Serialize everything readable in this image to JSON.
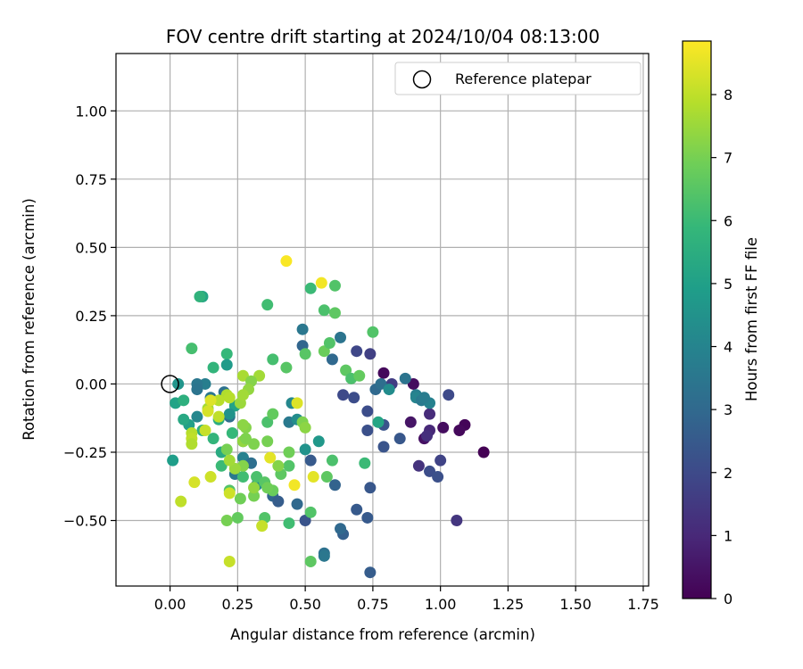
{
  "chart_data": {
    "type": "scatter",
    "title": "FOV centre drift starting at 2024/10/04 08:13:00",
    "xlabel": "Angular distance from reference (arcmin)",
    "ylabel": "Rotation from reference (arcmin)",
    "xlim": [
      -0.2,
      1.77
    ],
    "ylim": [
      -0.74,
      1.21
    ],
    "xticks": [
      "0.00",
      "0.25",
      "0.50",
      "0.75",
      "1.00",
      "1.25",
      "1.50",
      "1.75"
    ],
    "xtick_values": [
      0,
      0.25,
      0.5,
      0.75,
      1.0,
      1.25,
      1.5,
      1.75
    ],
    "yticks": [
      "−0.50",
      "−0.25",
      "0.00",
      "0.25",
      "0.50",
      "0.75",
      "1.00"
    ],
    "ytick_values": [
      -0.5,
      -0.25,
      0,
      0.25,
      0.5,
      0.75,
      1.0
    ],
    "grid": true,
    "legend": {
      "placement": "top-right",
      "entries": [
        "Reference platepar"
      ]
    },
    "reference_point": {
      "x": 0.0,
      "y": 0.0
    },
    "colorbar": {
      "label": "Hours from first FF file",
      "colormap": "viridis",
      "range": [
        0,
        8.85
      ],
      "ticks": [
        "0",
        "1",
        "2",
        "3",
        "4",
        "5",
        "6",
        "7",
        "8"
      ],
      "tick_values": [
        0,
        1,
        2,
        3,
        4,
        5,
        6,
        7,
        8
      ]
    },
    "points": [
      {
        "x": 1.16,
        "y": -0.25,
        "c": 0.0
      },
      {
        "x": 1.09,
        "y": -0.15,
        "c": 0.1
      },
      {
        "x": 1.07,
        "y": -0.17,
        "c": 0.2
      },
      {
        "x": 1.01,
        "y": -0.16,
        "c": 0.3
      },
      {
        "x": 0.94,
        "y": -0.2,
        "c": 0.4
      },
      {
        "x": 0.89,
        "y": -0.14,
        "c": 0.5
      },
      {
        "x": 0.9,
        "y": 0.0,
        "c": 0.3
      },
      {
        "x": 0.79,
        "y": 0.04,
        "c": 0.2
      },
      {
        "x": 0.96,
        "y": -0.17,
        "c": 1.0
      },
      {
        "x": 0.95,
        "y": -0.19,
        "c": 1.2
      },
      {
        "x": 0.96,
        "y": -0.11,
        "c": 1.1
      },
      {
        "x": 0.92,
        "y": -0.3,
        "c": 1.3
      },
      {
        "x": 1.06,
        "y": -0.5,
        "c": 1.4
      },
      {
        "x": 1.0,
        "y": -0.28,
        "c": 1.8
      },
      {
        "x": 0.96,
        "y": -0.32,
        "c": 2.1
      },
      {
        "x": 0.99,
        "y": -0.34,
        "c": 2.2
      },
      {
        "x": 1.03,
        "y": -0.04,
        "c": 2.0
      },
      {
        "x": 0.82,
        "y": 0.0,
        "c": 1.6
      },
      {
        "x": 0.74,
        "y": 0.11,
        "c": 1.7
      },
      {
        "x": 0.69,
        "y": 0.12,
        "c": 1.9
      },
      {
        "x": 0.64,
        "y": -0.04,
        "c": 2.0
      },
      {
        "x": 0.68,
        "y": -0.05,
        "c": 2.1
      },
      {
        "x": 0.73,
        "y": -0.1,
        "c": 2.1
      },
      {
        "x": 0.73,
        "y": -0.17,
        "c": 2.2
      },
      {
        "x": 0.79,
        "y": -0.15,
        "c": 2.3
      },
      {
        "x": 0.79,
        "y": -0.23,
        "c": 2.3
      },
      {
        "x": 0.85,
        "y": -0.2,
        "c": 2.4
      },
      {
        "x": 0.74,
        "y": -0.38,
        "c": 2.4
      },
      {
        "x": 0.69,
        "y": -0.46,
        "c": 2.5
      },
      {
        "x": 0.73,
        "y": -0.49,
        "c": 2.5
      },
      {
        "x": 0.74,
        "y": -0.69,
        "c": 2.6
      },
      {
        "x": 0.64,
        "y": -0.55,
        "c": 2.7
      },
      {
        "x": 0.63,
        "y": -0.53,
        "c": 3.0
      },
      {
        "x": 0.57,
        "y": -0.62,
        "c": 3.3
      },
      {
        "x": 0.57,
        "y": -0.63,
        "c": 3.5
      },
      {
        "x": 0.5,
        "y": -0.5,
        "c": 2.3
      },
      {
        "x": 0.47,
        "y": -0.44,
        "c": 3.0
      },
      {
        "x": 0.38,
        "y": -0.41,
        "c": 2.9
      },
      {
        "x": 0.4,
        "y": -0.43,
        "c": 2.6
      },
      {
        "x": 0.52,
        "y": -0.28,
        "c": 2.5
      },
      {
        "x": 0.61,
        "y": -0.37,
        "c": 2.8
      },
      {
        "x": 0.6,
        "y": 0.09,
        "c": 3.0
      },
      {
        "x": 0.63,
        "y": 0.17,
        "c": 3.4
      },
      {
        "x": 0.49,
        "y": 0.14,
        "c": 2.9
      },
      {
        "x": 0.49,
        "y": 0.2,
        "c": 3.5
      },
      {
        "x": 0.76,
        "y": -0.02,
        "c": 3.0
      },
      {
        "x": 0.78,
        "y": 0.0,
        "c": 3.2
      },
      {
        "x": 0.87,
        "y": 0.02,
        "c": 3.4
      },
      {
        "x": 0.91,
        "y": -0.04,
        "c": 3.8
      },
      {
        "x": 0.91,
        "y": -0.05,
        "c": 4.0
      },
      {
        "x": 0.93,
        "y": -0.06,
        "c": 3.6
      },
      {
        "x": 0.96,
        "y": -0.07,
        "c": 3.9
      },
      {
        "x": 0.94,
        "y": -0.05,
        "c": 3.7
      },
      {
        "x": 0.81,
        "y": -0.02,
        "c": 4.3
      },
      {
        "x": 0.77,
        "y": -0.14,
        "c": 5.2
      },
      {
        "x": 0.44,
        "y": -0.14,
        "c": 3.6
      },
      {
        "x": 0.45,
        "y": -0.07,
        "c": 4.1
      },
      {
        "x": 0.47,
        "y": -0.13,
        "c": 4.3
      },
      {
        "x": 0.55,
        "y": -0.21,
        "c": 4.7
      },
      {
        "x": 0.5,
        "y": -0.24,
        "c": 4.5
      },
      {
        "x": 0.32,
        "y": -0.37,
        "c": 4.2
      },
      {
        "x": 0.27,
        "y": -0.27,
        "c": 3.9
      },
      {
        "x": 0.24,
        "y": -0.33,
        "c": 3.6
      },
      {
        "x": 0.3,
        "y": -0.29,
        "c": 3.2
      },
      {
        "x": 0.22,
        "y": -0.12,
        "c": 3.2
      },
      {
        "x": 0.2,
        "y": -0.03,
        "c": 3.3
      },
      {
        "x": 0.15,
        "y": -0.05,
        "c": 3.5
      },
      {
        "x": 0.13,
        "y": 0.0,
        "c": 3.8
      },
      {
        "x": 0.1,
        "y": 0.0,
        "c": 3.5
      },
      {
        "x": 0.1,
        "y": -0.02,
        "c": 3.4
      },
      {
        "x": 0.1,
        "y": -0.12,
        "c": 4.1
      },
      {
        "x": 0.07,
        "y": -0.15,
        "c": 5.0
      },
      {
        "x": 0.03,
        "y": 0.0,
        "c": 4.6
      },
      {
        "x": 0.02,
        "y": -0.07,
        "c": 5.1
      },
      {
        "x": 0.01,
        "y": -0.28,
        "c": 4.9
      },
      {
        "x": 0.12,
        "y": 0.32,
        "c": 5.2
      },
      {
        "x": 0.11,
        "y": 0.32,
        "c": 5.7
      },
      {
        "x": 0.08,
        "y": 0.13,
        "c": 6.2
      },
      {
        "x": 0.05,
        "y": -0.06,
        "c": 5.6
      },
      {
        "x": 0.05,
        "y": -0.13,
        "c": 5.3
      },
      {
        "x": 0.12,
        "y": -0.17,
        "c": 5.5
      },
      {
        "x": 0.16,
        "y": -0.2,
        "c": 5.8
      },
      {
        "x": 0.18,
        "y": -0.13,
        "c": 5.5
      },
      {
        "x": 0.16,
        "y": 0.06,
        "c": 5.8
      },
      {
        "x": 0.21,
        "y": 0.11,
        "c": 5.9
      },
      {
        "x": 0.21,
        "y": 0.07,
        "c": 4.8
      },
      {
        "x": 0.24,
        "y": -0.08,
        "c": 5.1
      },
      {
        "x": 0.22,
        "y": -0.11,
        "c": 4.5
      },
      {
        "x": 0.27,
        "y": -0.21,
        "c": 5.2
      },
      {
        "x": 0.23,
        "y": -0.18,
        "c": 5.9
      },
      {
        "x": 0.19,
        "y": -0.25,
        "c": 5.4
      },
      {
        "x": 0.19,
        "y": -0.3,
        "c": 6.0
      },
      {
        "x": 0.27,
        "y": -0.34,
        "c": 6.1
      },
      {
        "x": 0.22,
        "y": -0.39,
        "c": 6.4
      },
      {
        "x": 0.32,
        "y": -0.34,
        "c": 6.3
      },
      {
        "x": 0.35,
        "y": -0.36,
        "c": 6.5
      },
      {
        "x": 0.38,
        "y": -0.39,
        "c": 6.8
      },
      {
        "x": 0.41,
        "y": -0.33,
        "c": 6.6
      },
      {
        "x": 0.44,
        "y": -0.3,
        "c": 6.4
      },
      {
        "x": 0.44,
        "y": -0.25,
        "c": 6.9
      },
      {
        "x": 0.36,
        "y": -0.21,
        "c": 7.0
      },
      {
        "x": 0.31,
        "y": -0.22,
        "c": 7.1
      },
      {
        "x": 0.28,
        "y": -0.16,
        "c": 7.2
      },
      {
        "x": 0.33,
        "y": 0.03,
        "c": 7.6
      },
      {
        "x": 0.27,
        "y": 0.03,
        "c": 7.7
      },
      {
        "x": 0.21,
        "y": -0.04,
        "c": 7.8
      },
      {
        "x": 0.18,
        "y": -0.06,
        "c": 7.9
      },
      {
        "x": 0.36,
        "y": -0.14,
        "c": 6.3
      },
      {
        "x": 0.38,
        "y": -0.11,
        "c": 6.7
      },
      {
        "x": 0.43,
        "y": 0.06,
        "c": 6.5
      },
      {
        "x": 0.38,
        "y": 0.09,
        "c": 6.2
      },
      {
        "x": 0.36,
        "y": 0.29,
        "c": 6.1
      },
      {
        "x": 0.52,
        "y": 0.35,
        "c": 6.0
      },
      {
        "x": 0.57,
        "y": 0.27,
        "c": 6.3
      },
      {
        "x": 0.61,
        "y": 0.26,
        "c": 6.6
      },
      {
        "x": 0.61,
        "y": 0.36,
        "c": 6.4
      },
      {
        "x": 0.5,
        "y": 0.11,
        "c": 6.5
      },
      {
        "x": 0.57,
        "y": 0.12,
        "c": 6.8
      },
      {
        "x": 0.59,
        "y": 0.15,
        "c": 6.4
      },
      {
        "x": 0.65,
        "y": 0.05,
        "c": 6.6
      },
      {
        "x": 0.67,
        "y": 0.02,
        "c": 6.3
      },
      {
        "x": 0.7,
        "y": 0.03,
        "c": 6.7
      },
      {
        "x": 0.75,
        "y": 0.19,
        "c": 6.4
      },
      {
        "x": 0.72,
        "y": -0.29,
        "c": 6.0
      },
      {
        "x": 0.6,
        "y": -0.28,
        "c": 6.3
      },
      {
        "x": 0.58,
        "y": -0.34,
        "c": 6.6
      },
      {
        "x": 0.52,
        "y": -0.47,
        "c": 6.4
      },
      {
        "x": 0.52,
        "y": -0.65,
        "c": 6.6
      },
      {
        "x": 0.44,
        "y": -0.51,
        "c": 6.1
      },
      {
        "x": 0.35,
        "y": -0.49,
        "c": 6.4
      },
      {
        "x": 0.25,
        "y": -0.49,
        "c": 6.7
      },
      {
        "x": 0.21,
        "y": -0.5,
        "c": 7.0
      },
      {
        "x": 0.26,
        "y": -0.42,
        "c": 6.9
      },
      {
        "x": 0.31,
        "y": -0.41,
        "c": 7.0
      },
      {
        "x": 0.31,
        "y": -0.38,
        "c": 7.4
      },
      {
        "x": 0.36,
        "y": -0.38,
        "c": 6.9
      },
      {
        "x": 0.4,
        "y": -0.3,
        "c": 7.2
      },
      {
        "x": 0.49,
        "y": -0.14,
        "c": 7.1
      },
      {
        "x": 0.5,
        "y": -0.16,
        "c": 7.3
      },
      {
        "x": 0.27,
        "y": -0.3,
        "c": 7.2
      },
      {
        "x": 0.24,
        "y": -0.31,
        "c": 7.5
      },
      {
        "x": 0.21,
        "y": -0.24,
        "c": 7.0
      },
      {
        "x": 0.22,
        "y": -0.28,
        "c": 7.6
      },
      {
        "x": 0.27,
        "y": -0.21,
        "c": 7.4
      },
      {
        "x": 0.28,
        "y": -0.2,
        "c": 7.1
      },
      {
        "x": 0.27,
        "y": -0.15,
        "c": 7.3
      },
      {
        "x": 0.26,
        "y": -0.07,
        "c": 7.5
      },
      {
        "x": 0.3,
        "y": 0.01,
        "c": 7.2
      },
      {
        "x": 0.29,
        "y": -0.02,
        "c": 7.4
      },
      {
        "x": 0.27,
        "y": -0.04,
        "c": 7.6
      },
      {
        "x": 0.22,
        "y": -0.05,
        "c": 7.9
      },
      {
        "x": 0.14,
        "y": -0.09,
        "c": 7.6
      },
      {
        "x": 0.08,
        "y": -0.18,
        "c": 7.9
      },
      {
        "x": 0.08,
        "y": -0.2,
        "c": 8.0
      },
      {
        "x": 0.08,
        "y": -0.22,
        "c": 7.8
      },
      {
        "x": 0.13,
        "y": -0.17,
        "c": 8.1
      },
      {
        "x": 0.14,
        "y": -0.1,
        "c": 8.3
      },
      {
        "x": 0.18,
        "y": -0.12,
        "c": 8.0
      },
      {
        "x": 0.15,
        "y": -0.34,
        "c": 8.2
      },
      {
        "x": 0.09,
        "y": -0.36,
        "c": 8.3
      },
      {
        "x": 0.04,
        "y": -0.43,
        "c": 8.0
      },
      {
        "x": 0.22,
        "y": -0.4,
        "c": 8.2
      },
      {
        "x": 0.22,
        "y": -0.65,
        "c": 8.1
      },
      {
        "x": 0.34,
        "y": -0.52,
        "c": 8.1
      },
      {
        "x": 0.37,
        "y": -0.27,
        "c": 8.5
      },
      {
        "x": 0.46,
        "y": -0.37,
        "c": 8.7
      },
      {
        "x": 0.53,
        "y": -0.34,
        "c": 8.5
      },
      {
        "x": 0.47,
        "y": -0.07,
        "c": 8.4
      },
      {
        "x": 0.56,
        "y": 0.37,
        "c": 8.7
      },
      {
        "x": 0.43,
        "y": 0.45,
        "c": 8.8
      },
      {
        "x": 0.15,
        "y": -0.06,
        "c": 8.4
      }
    ]
  }
}
